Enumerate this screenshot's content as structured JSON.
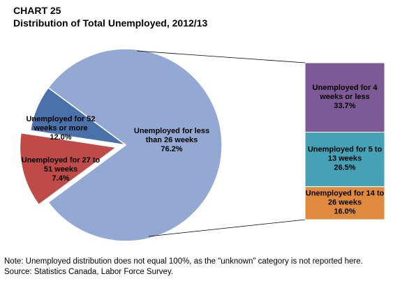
{
  "header": {
    "chart_number": "CHART 25",
    "title": "Distribution of Total Unemployed, 2012/13"
  },
  "chart_data": {
    "type": "pie",
    "title": "Distribution of Total Unemployed, 2012/13",
    "pie": {
      "slices": [
        {
          "label_lines": [
            "Unemployed for less",
            "than 26 weeks",
            "76.2%"
          ],
          "value": 76.2,
          "color": "#93A9D3",
          "exploded": false
        },
        {
          "label_lines": [
            "Unemployed for 27 to",
            "51 weeks",
            "7.4%"
          ],
          "value": 7.4,
          "color": "#4A71AA",
          "exploded": false
        },
        {
          "label_lines": [
            "Unemployed for 52",
            "weeks or more",
            "12.0%"
          ],
          "value": 12.0,
          "color": "#BF4B48",
          "exploded": true
        }
      ]
    },
    "breakdown_bar": {
      "parent_slice": "Unemployed for less than 26 weeks",
      "segments": [
        {
          "label_lines": [
            "Unemployed for 4",
            "weeks or less",
            "33.7%"
          ],
          "value": 33.7,
          "color": "#7D5A96"
        },
        {
          "label_lines": [
            "Unemployed for 5 to",
            "13 weeks",
            "26.5%"
          ],
          "value": 26.5,
          "color": "#44A1B6"
        },
        {
          "label_lines": [
            "Unemployed for 14 to",
            "26 weeks",
            "16.0%"
          ],
          "value": 16.0,
          "color": "#E08A40"
        }
      ]
    }
  },
  "footer": {
    "note": "Note: Unemployed distribution does not equal 100%, as the \"unknown\" category is not reported here.",
    "source": "Source: Statistics Canada, Labor Force Survey."
  }
}
